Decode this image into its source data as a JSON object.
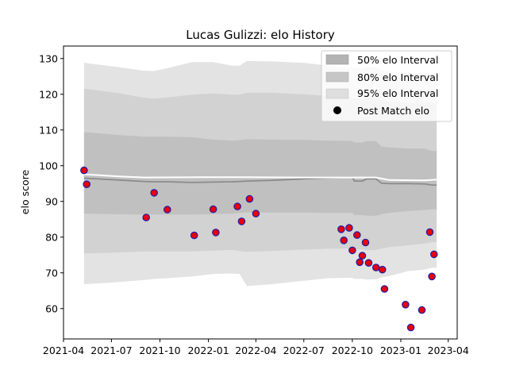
{
  "chart_data": {
    "type": "line",
    "title": "Lucas Gulizzi: elo History",
    "xlabel": "",
    "ylabel": "elo score",
    "x_range": [
      "2021-04-01",
      "2023-04-18"
    ],
    "ylim": [
      51.5,
      133.5
    ],
    "y_ticks": [
      60,
      70,
      80,
      90,
      100,
      110,
      120,
      130
    ],
    "x_ticks": [
      "2021-04",
      "2021-07",
      "2021-10",
      "2022-01",
      "2022-04",
      "2022-07",
      "2022-10",
      "2023-01",
      "2023-04"
    ],
    "grid": false,
    "legend_position": "top-right",
    "legend": [
      {
        "label": "50% elo Interval",
        "kind": "band",
        "color": "#b3b3b3"
      },
      {
        "label": "80% elo Interval",
        "kind": "band",
        "color": "#c6c6c6"
      },
      {
        "label": "95% elo Interval",
        "kind": "band",
        "color": "#dedede"
      },
      {
        "label": "Post Match elo",
        "kind": "marker",
        "color": "#000000"
      }
    ],
    "series": [
      {
        "kind": "bands",
        "x": [
          "2021-05-10",
          "2021-07-15",
          "2021-09-01",
          "2021-09-20",
          "2021-10-15",
          "2021-12-01",
          "2022-01-10",
          "2022-02-15",
          "2022-03-01",
          "2022-03-15",
          "2022-05-01",
          "2022-07-01",
          "2022-08-15",
          "2022-09-10",
          "2022-10-01",
          "2022-10-05",
          "2022-10-20",
          "2022-10-28",
          "2022-11-15",
          "2022-11-25",
          "2022-12-10",
          "2023-01-15",
          "2023-02-15",
          "2023-03-01",
          "2023-03-10"
        ],
        "center": [
          96.5,
          96.0,
          95.6,
          95.5,
          95.5,
          95.3,
          95.4,
          95.5,
          95.6,
          95.7,
          95.9,
          96.3,
          96.6,
          96.7,
          96.7,
          95.7,
          95.7,
          96.3,
          96.3,
          95.1,
          95.0,
          95.0,
          94.9,
          94.6,
          94.6
        ],
        "p50_low": [
          86.6,
          86.4,
          86.3,
          86.3,
          86.3,
          86.3,
          86.4,
          86.6,
          86.8,
          86.9,
          86.9,
          86.9,
          86.8,
          86.8,
          86.8,
          86.2,
          86.2,
          86.0,
          86.0,
          86.4,
          86.8,
          87.3,
          87.6,
          87.8,
          87.8
        ],
        "p50_high": [
          109.4,
          108.6,
          108.1,
          108.1,
          108.1,
          108.0,
          107.3,
          107.0,
          107.1,
          107.4,
          107.3,
          107.2,
          107.0,
          107.0,
          106.9,
          106.5,
          106.5,
          106.9,
          106.9,
          105.4,
          105.1,
          104.8,
          104.8,
          104.1,
          104.1
        ],
        "p80_low": [
          75.4,
          75.7,
          76.0,
          76.0,
          76.0,
          76.0,
          76.2,
          76.4,
          76.1,
          75.9,
          76.1,
          76.5,
          76.8,
          76.8,
          76.8,
          76.6,
          76.6,
          76.3,
          76.4,
          76.8,
          77.2,
          77.7,
          78.2,
          78.6,
          78.6
        ],
        "p80_high": [
          121.6,
          120.3,
          119.0,
          118.8,
          119.1,
          119.9,
          120.2,
          119.9,
          119.9,
          120.4,
          120.4,
          120.0,
          119.5,
          119.3,
          119.2,
          118.9,
          118.9,
          119.2,
          119.2,
          118.3,
          117.8,
          117.7,
          117.7,
          117.7,
          117.7
        ],
        "p95_low": [
          66.8,
          67.4,
          68.0,
          68.3,
          68.5,
          69.0,
          69.7,
          69.8,
          69.7,
          66.3,
          66.8,
          67.8,
          68.5,
          68.6,
          68.6,
          68.3,
          68.3,
          68.1,
          68.2,
          68.7,
          69.1,
          70.5,
          70.9,
          71.4,
          71.4
        ],
        "p95_high": [
          128.8,
          127.6,
          126.6,
          126.5,
          127.3,
          129.0,
          129.0,
          128.0,
          128.0,
          129.3,
          129.2,
          128.8,
          128.0,
          127.6,
          127.5,
          127.2,
          127.2,
          127.6,
          127.6,
          126.7,
          126.4,
          126.0,
          125.9,
          125.9,
          125.9
        ]
      },
      {
        "kind": "trend",
        "x": [
          "2021-05-10",
          "2021-07-15",
          "2021-09-01",
          "2022-01-10",
          "2022-03-15",
          "2022-07-01",
          "2022-09-10",
          "2022-11-15",
          "2022-12-10",
          "2023-02-15",
          "2023-03-10"
        ],
        "values": [
          97.6,
          97.0,
          96.7,
          96.8,
          96.8,
          96.7,
          96.7,
          96.7,
          96.0,
          95.9,
          96.1
        ]
      },
      {
        "name": "Post Match elo",
        "kind": "points",
        "x": [
          "2021-05-10",
          "2021-05-15",
          "2021-09-05",
          "2021-09-20",
          "2021-10-15",
          "2021-12-05",
          "2022-01-10",
          "2022-01-15",
          "2022-02-25",
          "2022-03-05",
          "2022-03-20",
          "2022-04-01",
          "2022-09-10",
          "2022-09-15",
          "2022-09-25",
          "2022-10-01",
          "2022-10-10",
          "2022-10-15",
          "2022-10-20",
          "2022-10-26",
          "2022-11-01",
          "2022-11-15",
          "2022-11-27",
          "2022-12-01",
          "2023-01-10",
          "2023-01-20",
          "2023-02-10",
          "2023-02-25",
          "2023-03-01",
          "2023-03-05"
        ],
        "values": [
          98.7,
          94.8,
          85.5,
          92.4,
          87.7,
          80.5,
          87.8,
          81.3,
          88.6,
          84.4,
          90.7,
          86.6,
          82.2,
          79.1,
          82.6,
          76.3,
          80.6,
          73.0,
          74.8,
          78.5,
          72.8,
          71.5,
          70.9,
          65.5,
          61.1,
          54.7,
          59.6,
          81.4,
          69.0,
          75.2
        ]
      }
    ]
  }
}
